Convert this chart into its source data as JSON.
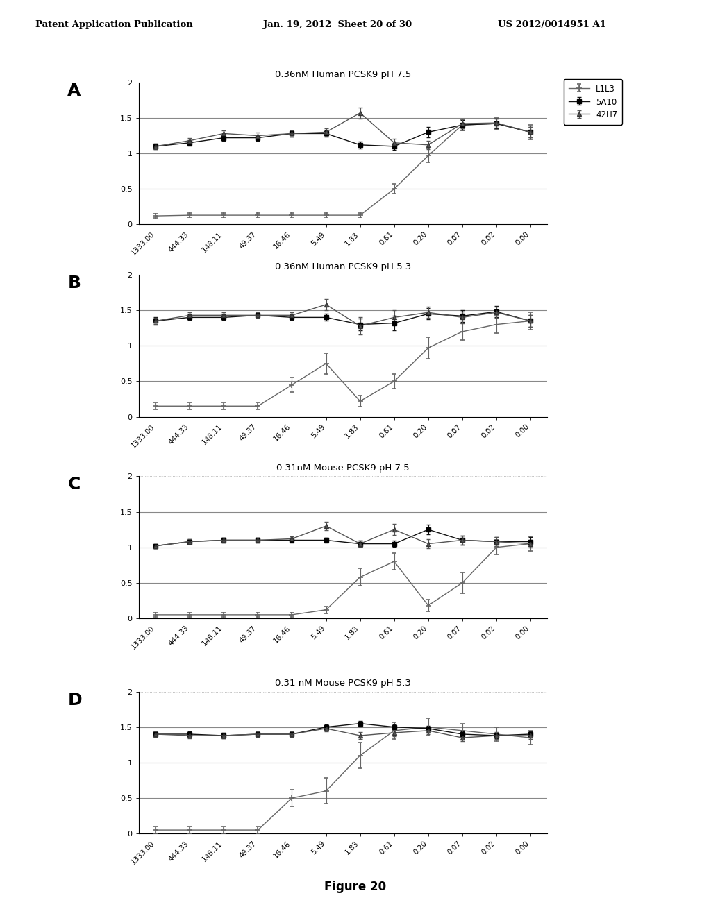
{
  "x_labels": [
    "1333.00",
    "444.33",
    "148.11",
    "49.37",
    "16.46",
    "5.49",
    "1.83",
    "0.61",
    "0.20",
    "0.07",
    "0.02",
    "0.00"
  ],
  "panels": [
    {
      "label": "A",
      "title": "0.36nM Human PCSK9 pH 7.5",
      "L1L3": [
        0.12,
        0.13,
        0.13,
        0.13,
        0.13,
        0.13,
        0.13,
        0.5,
        0.97,
        1.4,
        1.42,
        1.3
      ],
      "L1L3_err": [
        0.03,
        0.03,
        0.03,
        0.03,
        0.03,
        0.03,
        0.03,
        0.07,
        0.1,
        0.08,
        0.08,
        0.1
      ],
      "5A10": [
        1.1,
        1.15,
        1.22,
        1.22,
        1.28,
        1.28,
        1.12,
        1.1,
        1.3,
        1.4,
        1.42,
        1.3
      ],
      "5A10_err": [
        0.04,
        0.04,
        0.04,
        0.04,
        0.04,
        0.04,
        0.05,
        0.05,
        0.07,
        0.07,
        0.07,
        0.07
      ],
      "42H7": [
        1.1,
        1.18,
        1.28,
        1.25,
        1.28,
        1.3,
        1.57,
        1.15,
        1.12,
        1.42,
        1.43,
        1.3
      ],
      "42H7_err": [
        0.04,
        0.04,
        0.04,
        0.04,
        0.04,
        0.05,
        0.08,
        0.06,
        0.06,
        0.07,
        0.07,
        0.07
      ]
    },
    {
      "label": "B",
      "title": "0.36nM Human PCSK9 pH 5.3",
      "L1L3": [
        0.15,
        0.15,
        0.15,
        0.15,
        0.45,
        0.75,
        0.22,
        0.5,
        0.97,
        1.2,
        1.3,
        1.35
      ],
      "L1L3_err": [
        0.05,
        0.05,
        0.05,
        0.05,
        0.1,
        0.15,
        0.08,
        0.1,
        0.15,
        0.12,
        0.12,
        0.12
      ],
      "5A10": [
        1.35,
        1.4,
        1.4,
        1.43,
        1.4,
        1.4,
        1.3,
        1.32,
        1.45,
        1.42,
        1.48,
        1.35
      ],
      "5A10_err": [
        0.05,
        0.04,
        0.04,
        0.04,
        0.04,
        0.05,
        0.08,
        0.1,
        0.08,
        0.08,
        0.08,
        0.08
      ],
      "42H7": [
        1.35,
        1.43,
        1.43,
        1.43,
        1.43,
        1.58,
        1.28,
        1.4,
        1.47,
        1.4,
        1.47,
        1.35
      ],
      "42H7_err": [
        0.04,
        0.04,
        0.04,
        0.04,
        0.04,
        0.08,
        0.12,
        0.1,
        0.08,
        0.08,
        0.08,
        0.08
      ]
    },
    {
      "label": "C",
      "title": "0.31nM Mouse PCSK9 pH 7.5",
      "L1L3": [
        0.05,
        0.05,
        0.05,
        0.05,
        0.05,
        0.12,
        0.58,
        0.8,
        0.18,
        0.5,
        1.0,
        1.05
      ],
      "L1L3_err": [
        0.03,
        0.03,
        0.03,
        0.03,
        0.03,
        0.05,
        0.12,
        0.12,
        0.08,
        0.15,
        0.1,
        0.1
      ],
      "5A10": [
        1.02,
        1.08,
        1.1,
        1.1,
        1.1,
        1.1,
        1.05,
        1.05,
        1.25,
        1.1,
        1.08,
        1.08
      ],
      "5A10_err": [
        0.03,
        0.03,
        0.03,
        0.03,
        0.03,
        0.03,
        0.04,
        0.04,
        0.07,
        0.06,
        0.06,
        0.06
      ],
      "42H7": [
        1.02,
        1.08,
        1.1,
        1.1,
        1.12,
        1.3,
        1.05,
        1.25,
        1.05,
        1.1,
        1.08,
        1.05
      ],
      "42H7_err": [
        0.03,
        0.03,
        0.03,
        0.03,
        0.03,
        0.06,
        0.04,
        0.08,
        0.06,
        0.06,
        0.06,
        0.05
      ]
    },
    {
      "label": "D",
      "title": "0.31 nM Mouse PCSK9 pH 5.3",
      "L1L3": [
        0.05,
        0.05,
        0.05,
        0.05,
        0.5,
        0.6,
        1.1,
        1.45,
        1.5,
        1.45,
        1.4,
        1.35
      ],
      "L1L3_err": [
        0.05,
        0.05,
        0.05,
        0.05,
        0.12,
        0.18,
        0.18,
        0.12,
        0.12,
        0.1,
        0.1,
        0.1
      ],
      "5A10": [
        1.4,
        1.4,
        1.38,
        1.4,
        1.4,
        1.5,
        1.55,
        1.5,
        1.48,
        1.4,
        1.38,
        1.4
      ],
      "5A10_err": [
        0.04,
        0.04,
        0.04,
        0.04,
        0.04,
        0.04,
        0.04,
        0.04,
        0.04,
        0.04,
        0.04,
        0.04
      ],
      "42H7": [
        1.4,
        1.38,
        1.38,
        1.4,
        1.4,
        1.48,
        1.38,
        1.42,
        1.45,
        1.35,
        1.38,
        1.38
      ],
      "42H7_err": [
        0.04,
        0.04,
        0.04,
        0.04,
        0.04,
        0.04,
        0.05,
        0.05,
        0.05,
        0.05,
        0.05,
        0.05
      ]
    }
  ],
  "ylim": [
    0,
    2.0
  ],
  "yticks": [
    0,
    0.5,
    1.0,
    1.5,
    2
  ],
  "ytick_labels": [
    "0",
    "0.5",
    "1",
    "1.5",
    "2"
  ],
  "bg_color": "#ffffff",
  "line_color_L1L3": "#666666",
  "line_color_5A10": "#111111",
  "line_color_42H7": "#555555",
  "figure_title": "Figure 20"
}
